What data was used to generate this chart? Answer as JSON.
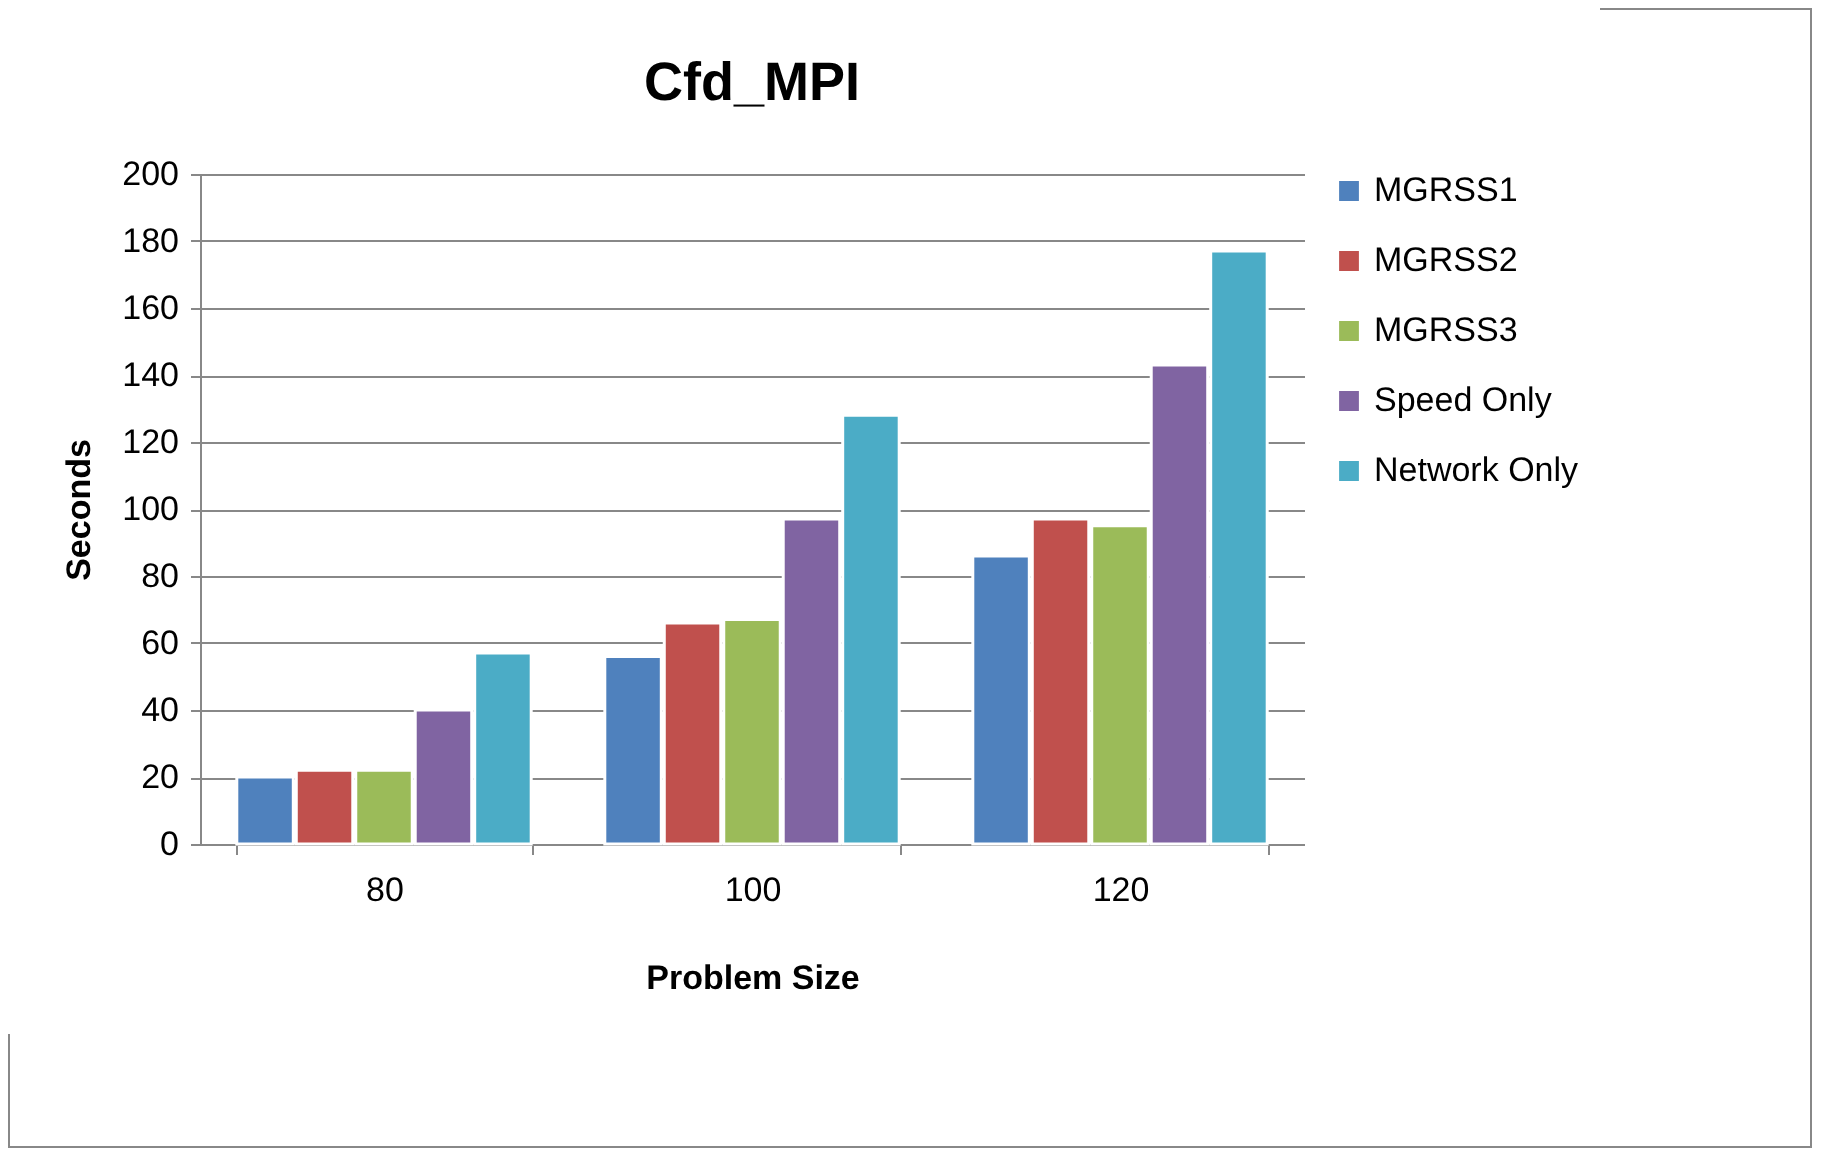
{
  "chart_data": {
    "type": "bar",
    "title": "Cfd_MPI",
    "xlabel": "Problem Size",
    "ylabel": "Seconds",
    "categories": [
      "80",
      "100",
      "120"
    ],
    "series": [
      {
        "name": "MGRSS1",
        "color": "#4f81bd",
        "values": [
          20,
          56,
          86
        ]
      },
      {
        "name": "MGRSS2",
        "color": "#c0504d",
        "values": [
          22,
          66,
          97
        ]
      },
      {
        "name": "MGRSS3",
        "color": "#9bbb59",
        "values": [
          22,
          67,
          95
        ]
      },
      {
        "name": "Speed Only",
        "color": "#8064a2",
        "values": [
          40,
          97,
          143
        ]
      },
      {
        "name": "Network Only",
        "color": "#4bacc6",
        "values": [
          57,
          128,
          177
        ]
      }
    ],
    "ylim": [
      0,
      200
    ],
    "yticks": [
      0,
      20,
      40,
      60,
      80,
      100,
      120,
      140,
      160,
      180,
      200
    ],
    "grid": "y",
    "legend": "right"
  }
}
